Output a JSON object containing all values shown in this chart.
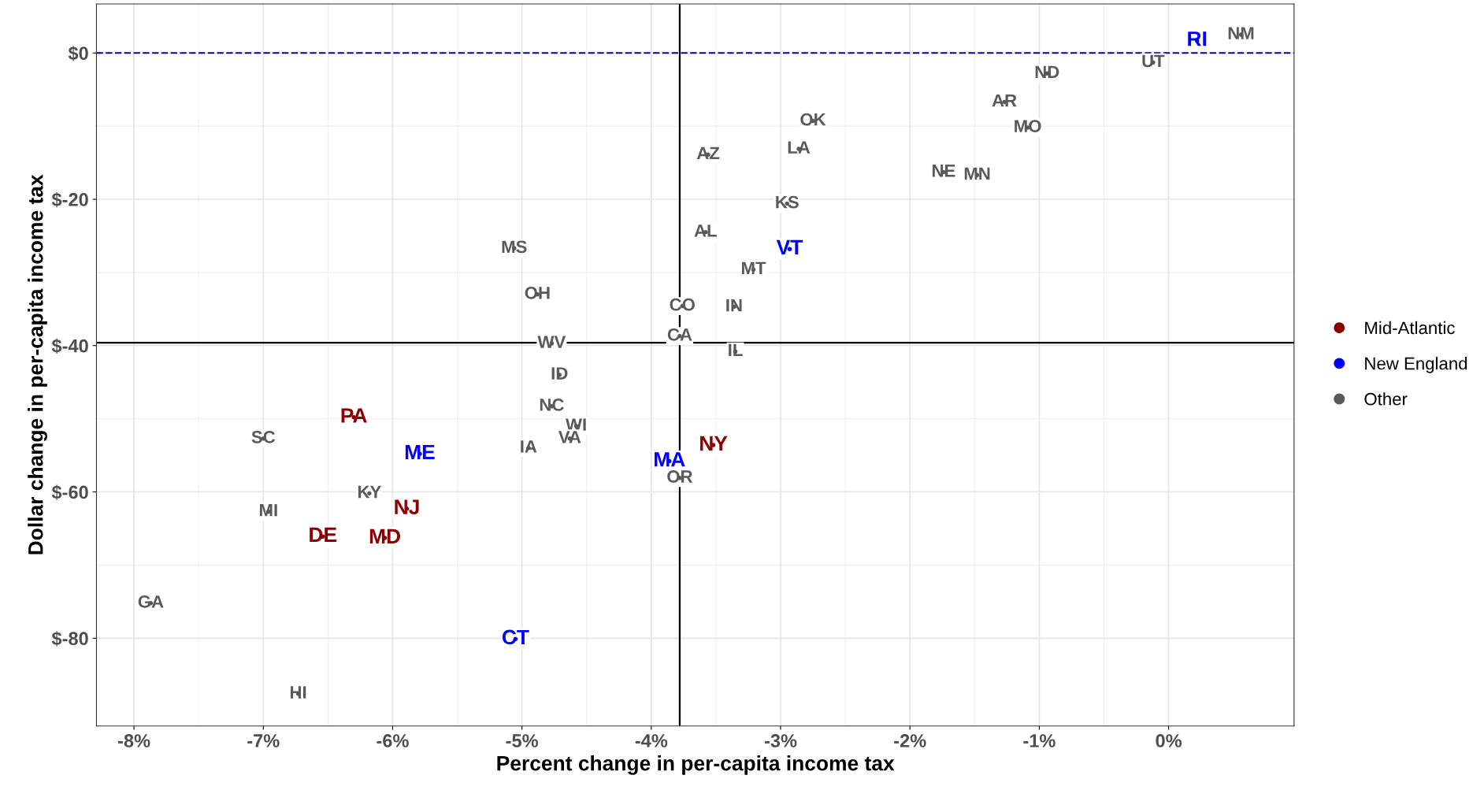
{
  "chart_data": {
    "type": "scatter",
    "xlabel": "Percent change in per-capita income tax",
    "ylabel": "Dollar change in per-capita income tax",
    "xlim": [
      -8.29,
      0.97
    ],
    "ylim": [
      -92.0,
      6.7
    ],
    "xticks": [
      {
        "value": -8,
        "label": "-8%"
      },
      {
        "value": -7,
        "label": "-7%"
      },
      {
        "value": -6,
        "label": "-6%"
      },
      {
        "value": -5,
        "label": "-5%"
      },
      {
        "value": -4,
        "label": "-4%"
      },
      {
        "value": -3,
        "label": "-3%"
      },
      {
        "value": -2,
        "label": "-2%"
      },
      {
        "value": -1,
        "label": "-1%"
      },
      {
        "value": 0,
        "label": "0%"
      }
    ],
    "yticks": [
      {
        "value": 0,
        "label": "$0"
      },
      {
        "value": -20,
        "label": "$-20"
      },
      {
        "value": -40,
        "label": "$-40"
      },
      {
        "value": -60,
        "label": "$-60"
      },
      {
        "value": -80,
        "label": "$-80"
      }
    ],
    "grid": true,
    "legend": "right",
    "marker": "circle",
    "ref_lines": [
      {
        "axis": "x",
        "value": -3.78,
        "color": "#000000",
        "line_style": "solid"
      },
      {
        "axis": "y",
        "value": -39.6,
        "color": "#000000",
        "line_style": "solid"
      },
      {
        "axis": "y",
        "value": 0,
        "color": "#00008b",
        "line_style": "dashed"
      }
    ],
    "series": [
      {
        "name": "Mid-Atlantic",
        "color": "#8b0000",
        "x": [
          -6.3,
          -3.52,
          -5.89,
          -6.54,
          -6.06
        ],
        "values": [
          -49.8,
          -53.6,
          -62.3,
          -66.1,
          -66.3
        ],
        "value_labels": [
          "PA",
          "NY",
          "NJ",
          "DE",
          "MD"
        ]
      },
      {
        "name": "New England",
        "color": "#0000ff",
        "x": [
          0.22,
          -2.93,
          -5.79,
          -3.86,
          -5.05
        ],
        "values": [
          1.7,
          -26.8,
          -54.8,
          -55.8,
          -80.1
        ],
        "value_labels": [
          "RI",
          "VT",
          "ME",
          "MA",
          "CT"
        ]
      },
      {
        "name": "Other",
        "color": "#595959",
        "x": [
          0.56,
          -0.12,
          -0.94,
          -1.27,
          -1.09,
          -2.75,
          -2.86,
          -3.56,
          -1.74,
          -1.48,
          -2.95,
          -3.58,
          -5.06,
          -3.21,
          -4.88,
          -3.76,
          -3.36,
          -3.78,
          -4.77,
          -3.35,
          -4.71,
          -4.77,
          -4.58,
          -7.0,
          -4.63,
          -4.95,
          -3.78,
          -6.18,
          -6.96,
          -7.87,
          -6.73
        ],
        "values": [
          2.5,
          -1.3,
          -2.8,
          -6.7,
          -10.2,
          -9.3,
          -13.1,
          -13.9,
          -16.3,
          -16.7,
          -20.6,
          -24.5,
          -26.7,
          -29.6,
          -33.0,
          -34.6,
          -34.7,
          -38.7,
          -39.7,
          -40.8,
          -44.0,
          -48.3,
          -51.0,
          -52.7,
          -52.7,
          -54.0,
          -58.1,
          -60.2,
          -62.7,
          -75.2,
          -87.6
        ],
        "value_labels": [
          "NM",
          "UT",
          "ND",
          "AR",
          "MO",
          "OK",
          "LA",
          "AZ",
          "NE",
          "MN",
          "KS",
          "AL",
          "MS",
          "MT",
          "OH",
          "CO",
          "IN",
          "CA",
          "WV",
          "IL",
          "ID",
          "NC",
          "WI",
          "SC",
          "VA",
          "IA",
          "OR",
          "KY",
          "MI",
          "GA",
          "HI"
        ]
      }
    ]
  }
}
